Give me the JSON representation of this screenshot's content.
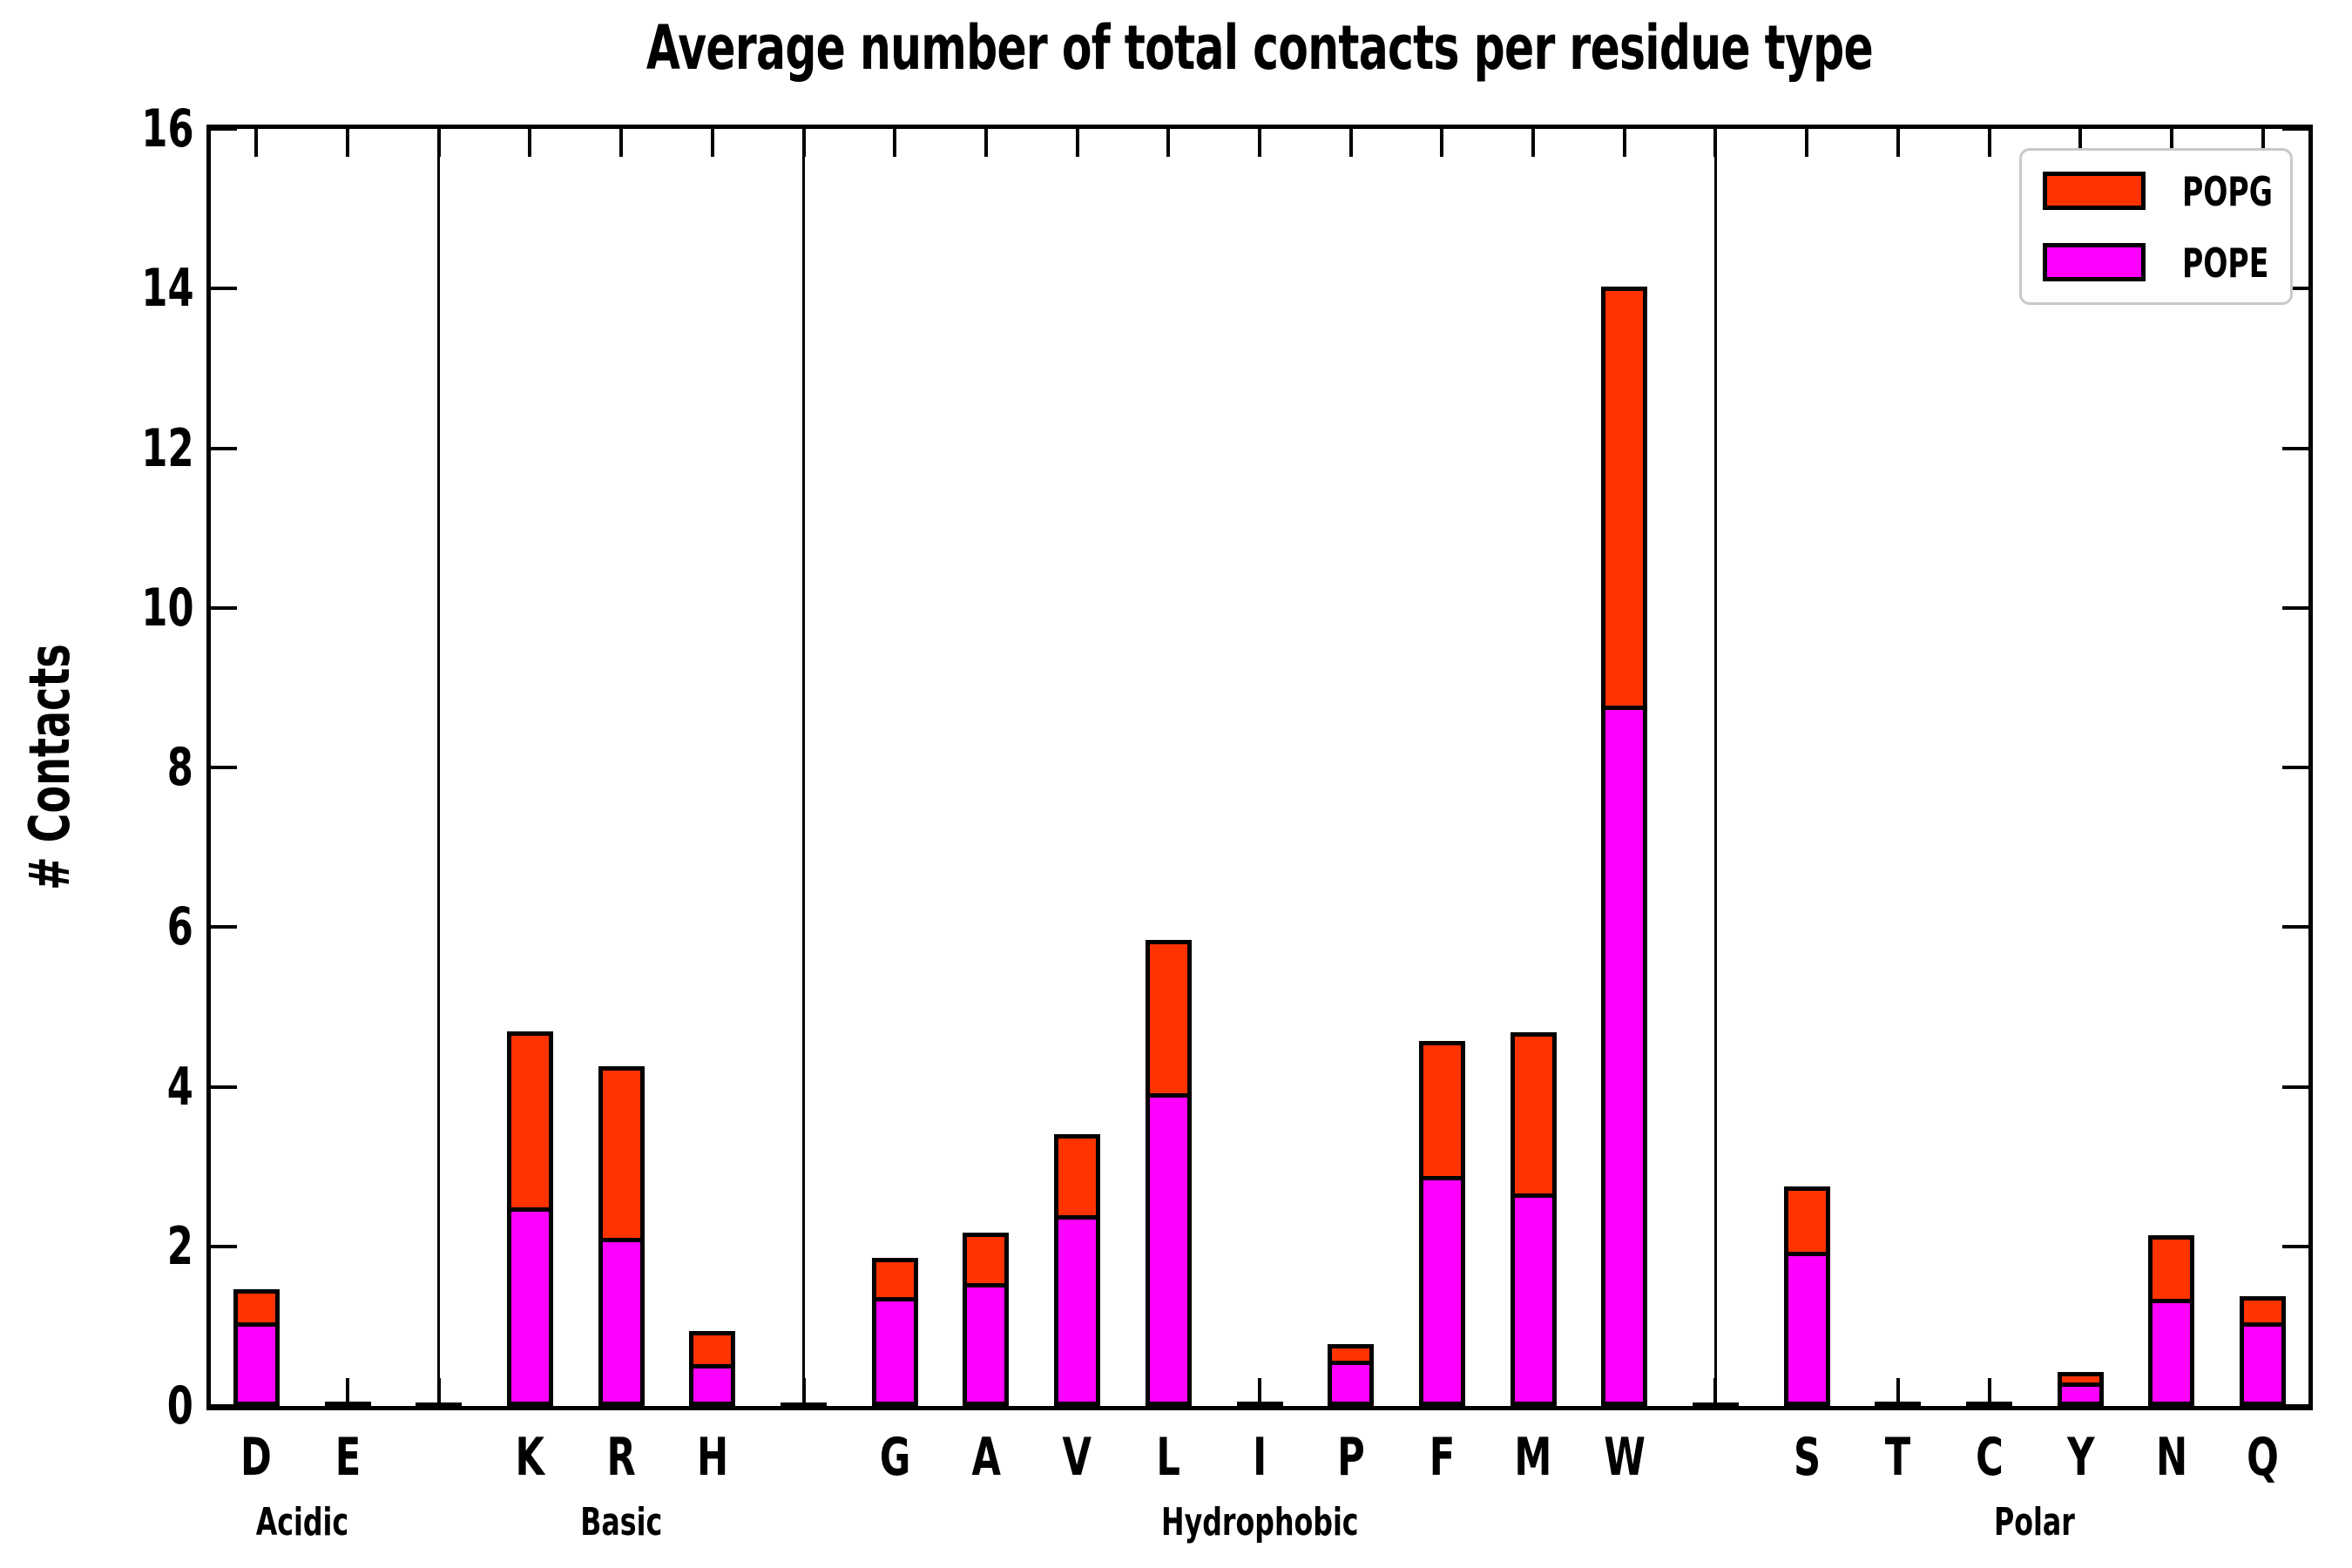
{
  "title": "Average number of total contacts per residue type",
  "ylabel": "# Contacts",
  "legend": {
    "items": [
      {
        "label": "POPG",
        "color": "#FF3300"
      },
      {
        "label": "POPE",
        "color": "#FF00FF"
      }
    ]
  },
  "colors": {
    "popg": "#FF3300",
    "pope": "#FF00FF",
    "axis": "#000000",
    "background": "#FFFFFF",
    "legend_border": "#C9C9C9"
  },
  "chart_data": {
    "type": "bar",
    "stacked": true,
    "title": "Average number of total contacts per residue type",
    "xlabel": "",
    "ylabel": "# Contacts",
    "ylim": [
      0,
      16
    ],
    "yticks": [
      0,
      2,
      4,
      6,
      8,
      10,
      12,
      14,
      16
    ],
    "grid": false,
    "legend_position": "upper right",
    "categories": [
      "D",
      "E",
      "K",
      "R",
      "H",
      "G",
      "A",
      "V",
      "L",
      "I",
      "P",
      "F",
      "M",
      "W",
      "S",
      "T",
      "C",
      "Y",
      "N",
      "Q"
    ],
    "groups": [
      {
        "label": "Acidic",
        "members": [
          "D",
          "E"
        ]
      },
      {
        "label": "Basic",
        "members": [
          "K",
          "R",
          "H"
        ]
      },
      {
        "label": "Hydrophobic",
        "members": [
          "G",
          "A",
          "V",
          "L",
          "I",
          "P",
          "F",
          "M",
          "W"
        ]
      },
      {
        "label": "Polar",
        "members": [
          "S",
          "T",
          "C",
          "Y",
          "N",
          "Q"
        ]
      }
    ],
    "series": [
      {
        "name": "POPE",
        "color": "#FF00FF",
        "values": [
          1.04,
          0.01,
          2.49,
          2.11,
          0.53,
          1.36,
          1.54,
          2.4,
          3.92,
          0.01,
          0.57,
          2.88,
          2.66,
          8.78,
          1.93,
          0.01,
          0.01,
          0.3,
          1.34,
          1.04
        ]
      },
      {
        "name": "POPG",
        "color": "#FF3300",
        "values": [
          0.42,
          0.01,
          2.2,
          2.15,
          0.41,
          0.49,
          0.63,
          1.01,
          1.92,
          0.0,
          0.21,
          1.69,
          2.02,
          5.25,
          0.82,
          0.01,
          0.0,
          0.13,
          0.8,
          0.33
        ]
      }
    ],
    "totals": [
      1.46,
      0.02,
      4.69,
      4.26,
      0.94,
      1.85,
      2.17,
      3.41,
      5.84,
      0.01,
      0.78,
      4.57,
      4.68,
      14.03,
      2.75,
      0.02,
      0.01,
      0.43,
      2.14,
      1.37
    ]
  }
}
